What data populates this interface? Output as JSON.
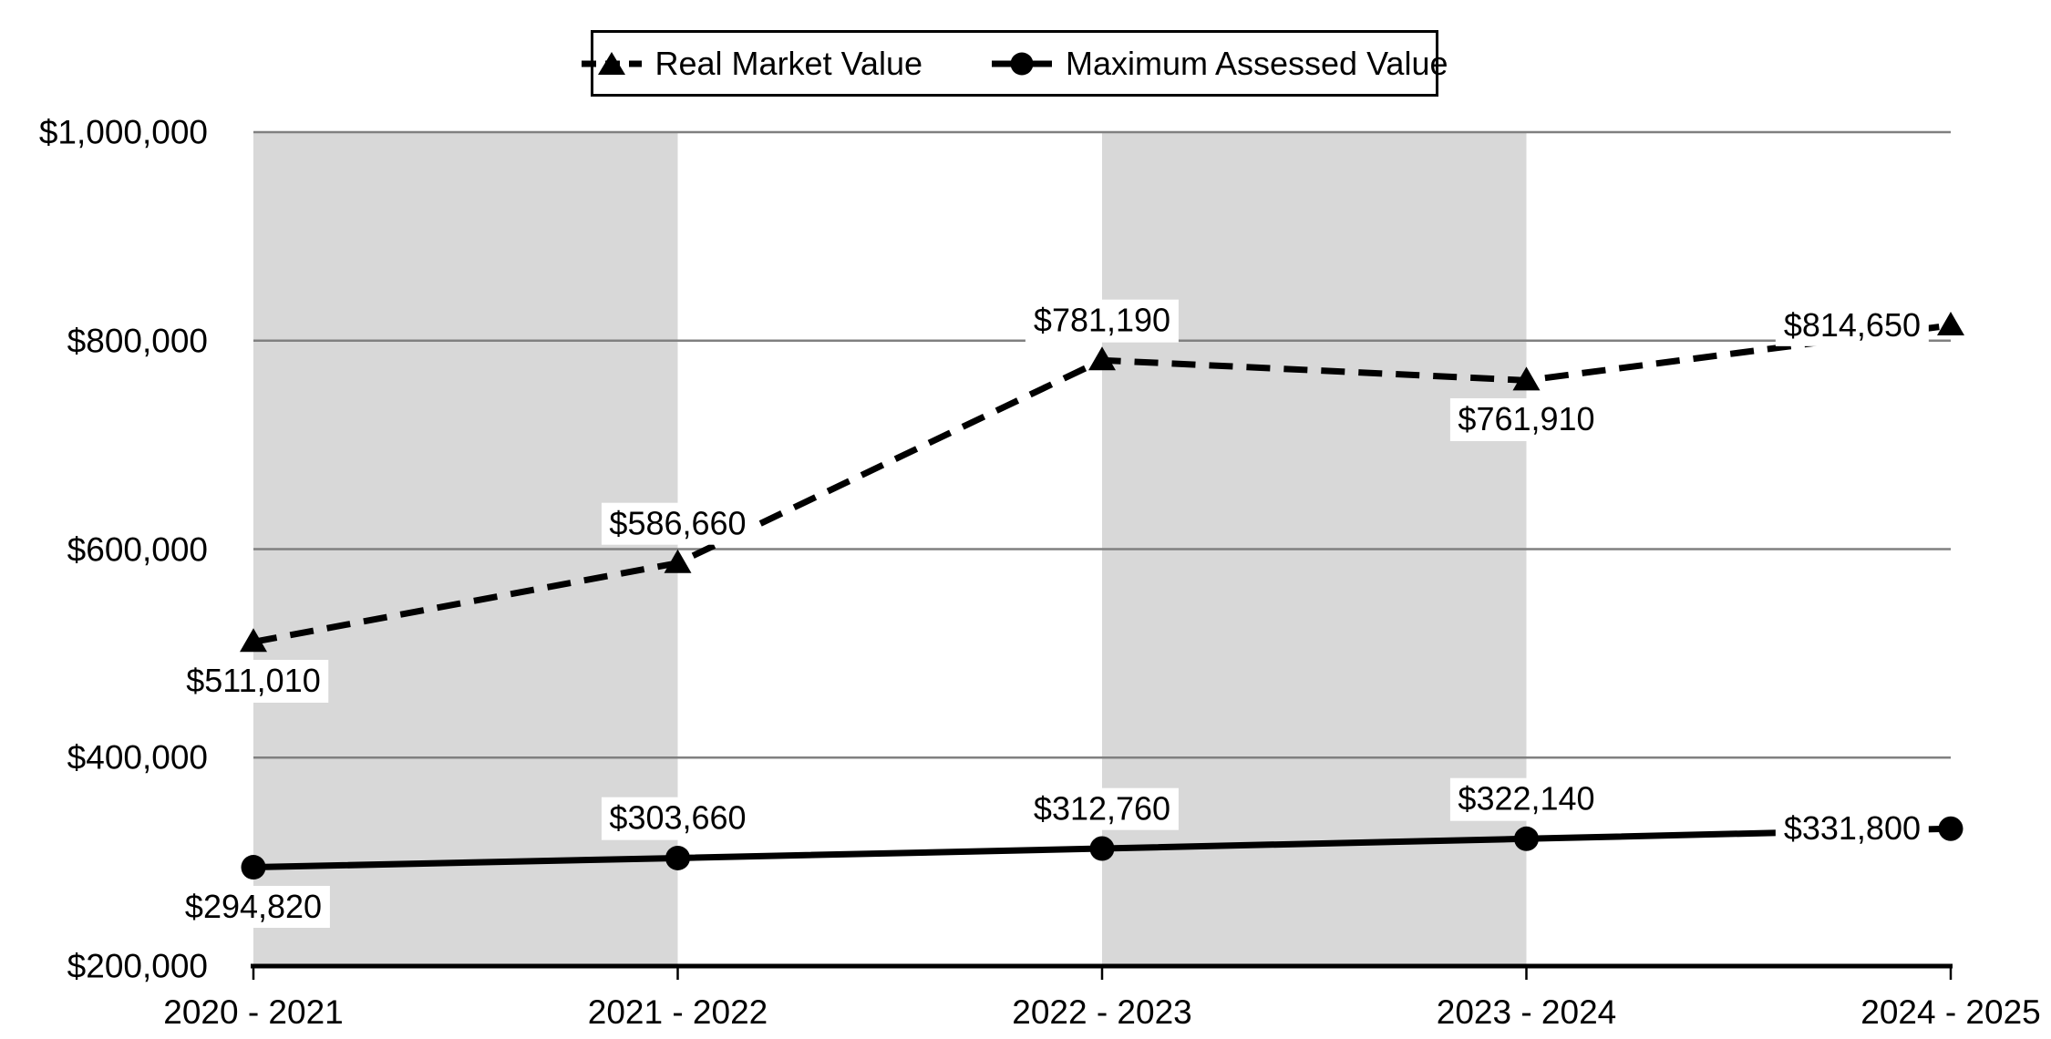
{
  "chart_data": {
    "type": "line",
    "title": "",
    "xlabel": "",
    "ylabel": "",
    "categories": [
      "2020 - 2021",
      "2021 - 2022",
      "2022 - 2023",
      "2023 - 2024",
      "2024 - 2025"
    ],
    "series": [
      {
        "name": "Real Market Value",
        "values": [
          511010,
          586660,
          781190,
          761910,
          814650
        ],
        "labels": [
          "$511,010",
          "$586,660",
          "$781,190",
          "$761,910",
          "$814,650"
        ],
        "label_positions": [
          "below",
          "above",
          "above",
          "below",
          "left"
        ],
        "line_style": "dashed",
        "marker": "triangle",
        "color": "#000000"
      },
      {
        "name": "Maximum Assessed Value",
        "values": [
          294820,
          303660,
          312760,
          322140,
          331800
        ],
        "labels": [
          "$294,820",
          "$303,660",
          "$312,760",
          "$322,140",
          "$331,800"
        ],
        "label_positions": [
          "below",
          "above",
          "above",
          "above",
          "left"
        ],
        "line_style": "solid",
        "marker": "circle",
        "color": "#000000"
      }
    ],
    "y_axis": {
      "min": 200000,
      "max": 1000000,
      "step": 200000,
      "tick_labels": [
        "$200,000",
        "$400,000",
        "$600,000",
        "$800,000",
        "$1,000,000"
      ]
    },
    "legend_position": "top-center",
    "grid": true,
    "gridline_color": "#808080",
    "axis_color": "#000000",
    "plot_band_color": "#d8d8d8",
    "plot_bands_between_categories": [
      [
        0,
        1
      ],
      [
        2,
        3
      ]
    ],
    "label_box_color": "#ffffff",
    "background_color": "#ffffff"
  }
}
